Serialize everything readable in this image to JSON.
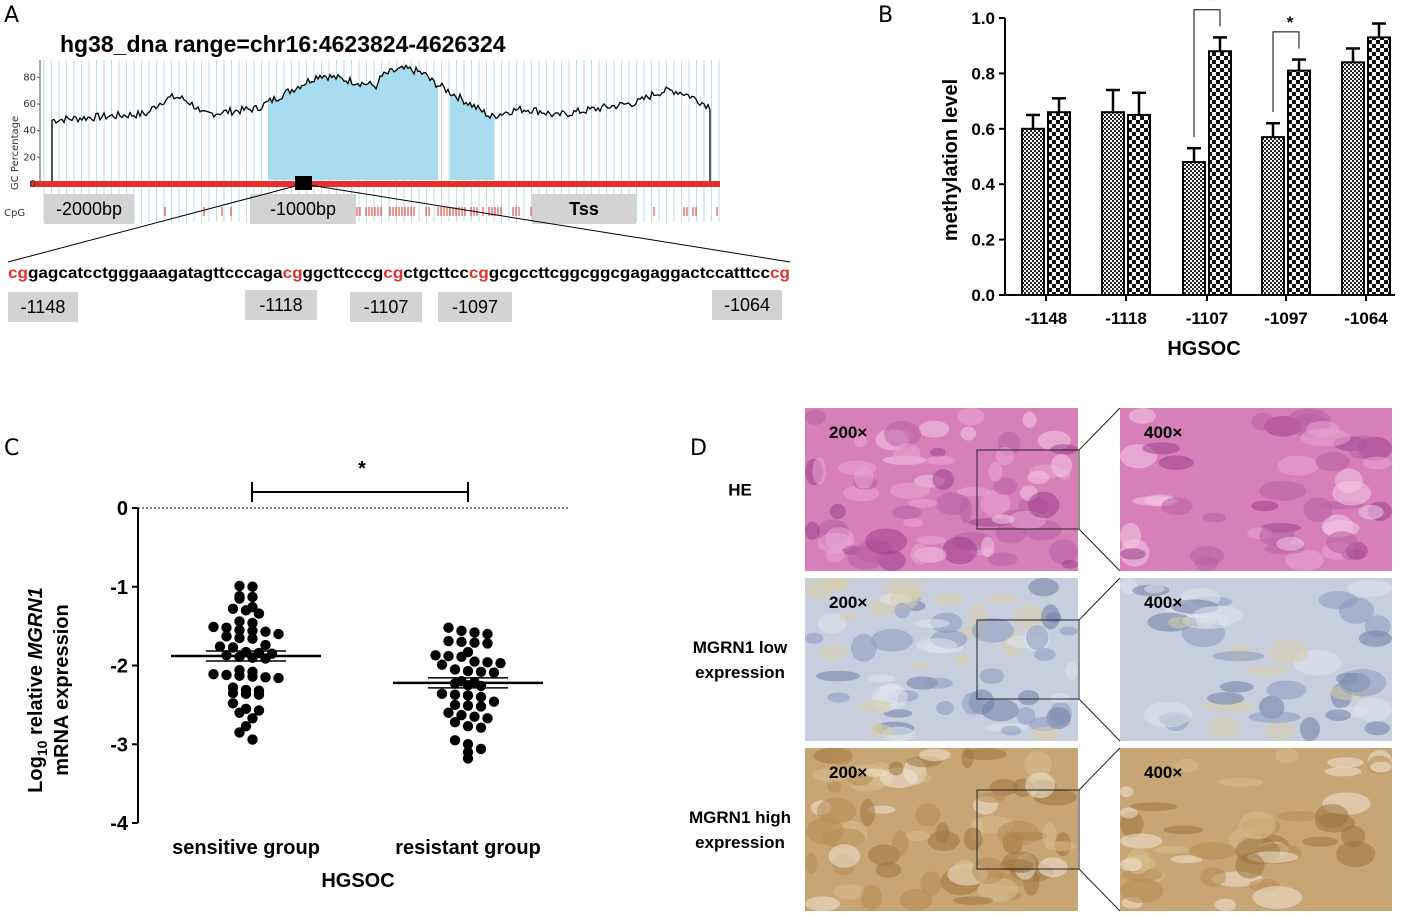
{
  "panels": {
    "a": {
      "label": "A",
      "title": "hg38_dna range=chr16:4623824-4626324",
      "gc_axis": {
        "label": "GC Percentage",
        "ticks": [
          "80",
          "60",
          "40",
          "20",
          "0"
        ]
      },
      "cpg_label": "CpG",
      "markers": [
        "-2000bp",
        "-1000bp",
        "Tss"
      ],
      "sequence": [
        {
          "t": "cg",
          "red": true
        },
        {
          "t": "gagcatcctgggaaagatagttcccaga",
          "red": false
        },
        {
          "t": "cg",
          "red": true
        },
        {
          "t": "ggcttcccg",
          "red": false
        },
        {
          "t": "cg",
          "red": true
        },
        {
          "t": "ctgcttcc",
          "red": false
        },
        {
          "t": "cg",
          "red": true
        },
        {
          "t": "gcgccttcggcggcgagaggactccatttcc",
          "red": false
        },
        {
          "t": "cg",
          "red": true
        }
      ],
      "sites": [
        "-1148",
        "-1118",
        "-1107",
        "-1097",
        "-1064"
      ],
      "colors": {
        "cpg_red": "#e8302a",
        "island_blue": "#a8dcef",
        "grid": "#b9e0ea",
        "box": "#d3d3d3"
      }
    },
    "b": {
      "label": "B",
      "ylabel": "methylation level",
      "xlabel": "HGSOC",
      "yticks": [
        "0.0",
        "0.2",
        "0.4",
        "0.6",
        "0.8",
        "1.0"
      ],
      "significance": [
        {
          "site": "-1107",
          "text": "**"
        },
        {
          "site": "-1097",
          "text": "*"
        }
      ]
    },
    "c": {
      "label": "C",
      "ylabel_parts": [
        "Log",
        "10",
        " relative ",
        "MGRN1",
        "mRNA expression"
      ],
      "xlabel": "HGSOC",
      "yticks": [
        "0",
        "-1",
        "-2",
        "-3",
        "-4"
      ],
      "sig": "*"
    },
    "d": {
      "label": "D",
      "rows": [
        {
          "lines": [
            "HE"
          ],
          "mag_low": "200×",
          "mag_high": "400×"
        },
        {
          "lines": [
            "MGRN1 low",
            "expression"
          ],
          "mag_low": "200×",
          "mag_high": "400×"
        },
        {
          "lines": [
            "MGRN1 high",
            "expression"
          ],
          "mag_low": "200×",
          "mag_high": "400×"
        }
      ],
      "colors": [
        "#d77fb9",
        "#c7cfdf",
        "#c7a574"
      ]
    }
  },
  "chart_data": [
    {
      "type": "bar",
      "panel": "B",
      "categories": [
        "-1148",
        "-1118",
        "-1107",
        "-1097",
        "-1064"
      ],
      "series": [
        {
          "values": [
            0.6,
            0.66,
            0.48,
            0.57,
            0.84
          ],
          "errors": [
            0.05,
            0.08,
            0.05,
            0.05,
            0.05
          ]
        },
        {
          "values": [
            0.66,
            0.65,
            0.88,
            0.81,
            0.93
          ],
          "errors": [
            0.05,
            0.08,
            0.05,
            0.04,
            0.05
          ]
        }
      ],
      "xlabel": "HGSOC",
      "ylabel": "methylation level",
      "ylim": [
        0,
        1.0
      ]
    },
    {
      "type": "scatter",
      "panel": "C",
      "categories": [
        "sensitive group",
        "resistant group"
      ],
      "series": [
        {
          "mean": -1.88,
          "values": [
            -0.99,
            -1.0,
            -1.12,
            -1.13,
            -1.15,
            -1.26,
            -1.28,
            -1.3,
            -1.34,
            -1.44,
            -1.46,
            -1.51,
            -1.52,
            -1.55,
            -1.56,
            -1.57,
            -1.6,
            -1.63,
            -1.65,
            -1.66,
            -1.74,
            -1.76,
            -1.77,
            -1.83,
            -1.84,
            -1.85,
            -1.87,
            -1.89,
            -1.9,
            -1.91,
            -2.06,
            -2.08,
            -2.11,
            -2.12,
            -2.13,
            -2.14,
            -2.15,
            -2.16,
            -2.28,
            -2.31,
            -2.32,
            -2.35,
            -2.36,
            -2.37,
            -2.48,
            -2.55,
            -2.57,
            -2.6,
            -2.67,
            -2.77,
            -2.85,
            -2.94
          ]
        },
        {
          "mean": -2.22,
          "values": [
            -1.52,
            -1.56,
            -1.58,
            -1.6,
            -1.69,
            -1.7,
            -1.71,
            -1.72,
            -1.83,
            -1.87,
            -1.88,
            -1.89,
            -1.95,
            -1.96,
            -1.97,
            -1.99,
            -2.05,
            -2.07,
            -2.08,
            -2.09,
            -2.2,
            -2.21,
            -2.23,
            -2.25,
            -2.26,
            -2.36,
            -2.37,
            -2.38,
            -2.4,
            -2.46,
            -2.5,
            -2.51,
            -2.52,
            -2.6,
            -2.63,
            -2.65,
            -2.67,
            -2.72,
            -2.77,
            -2.79,
            -2.95,
            -3.0,
            -3.06,
            -3.1,
            -3.18
          ]
        }
      ],
      "xlabel": "HGSOC",
      "ylim": [
        -4,
        0
      ]
    }
  ]
}
